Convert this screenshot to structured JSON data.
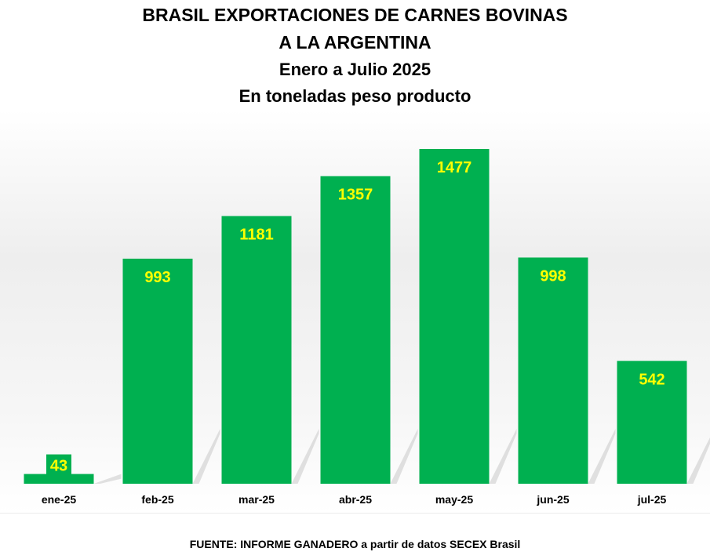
{
  "title_lines": [
    "BRASIL EXPORTACIONES DE CARNES BOVINAS",
    "A LA ARGENTINA",
    "Enero a Julio 2025",
    "En toneladas peso producto"
  ],
  "source": "FUENTE: INFORME GANADERO a partir de datos SECEX Brasil",
  "colors": {
    "bar": "#00b050",
    "label": "#ffff00",
    "shadow": "#c8c8c8"
  },
  "chart_data": {
    "type": "bar",
    "title": "BRASIL EXPORTACIONES DE CARNES BOVINAS A LA ARGENTINA",
    "subtitle": "Enero a Julio 2025 — En toneladas peso producto",
    "categories": [
      "ene-25",
      "feb-25",
      "mar-25",
      "abr-25",
      "may-25",
      "jun-25",
      "jul-25"
    ],
    "values": [
      43,
      993,
      1181,
      1357,
      1477,
      998,
      542
    ],
    "xlabel": "",
    "ylabel": "",
    "ylim": [
      0,
      1477
    ],
    "grid": false,
    "legend": "none",
    "data_labels": true
  }
}
